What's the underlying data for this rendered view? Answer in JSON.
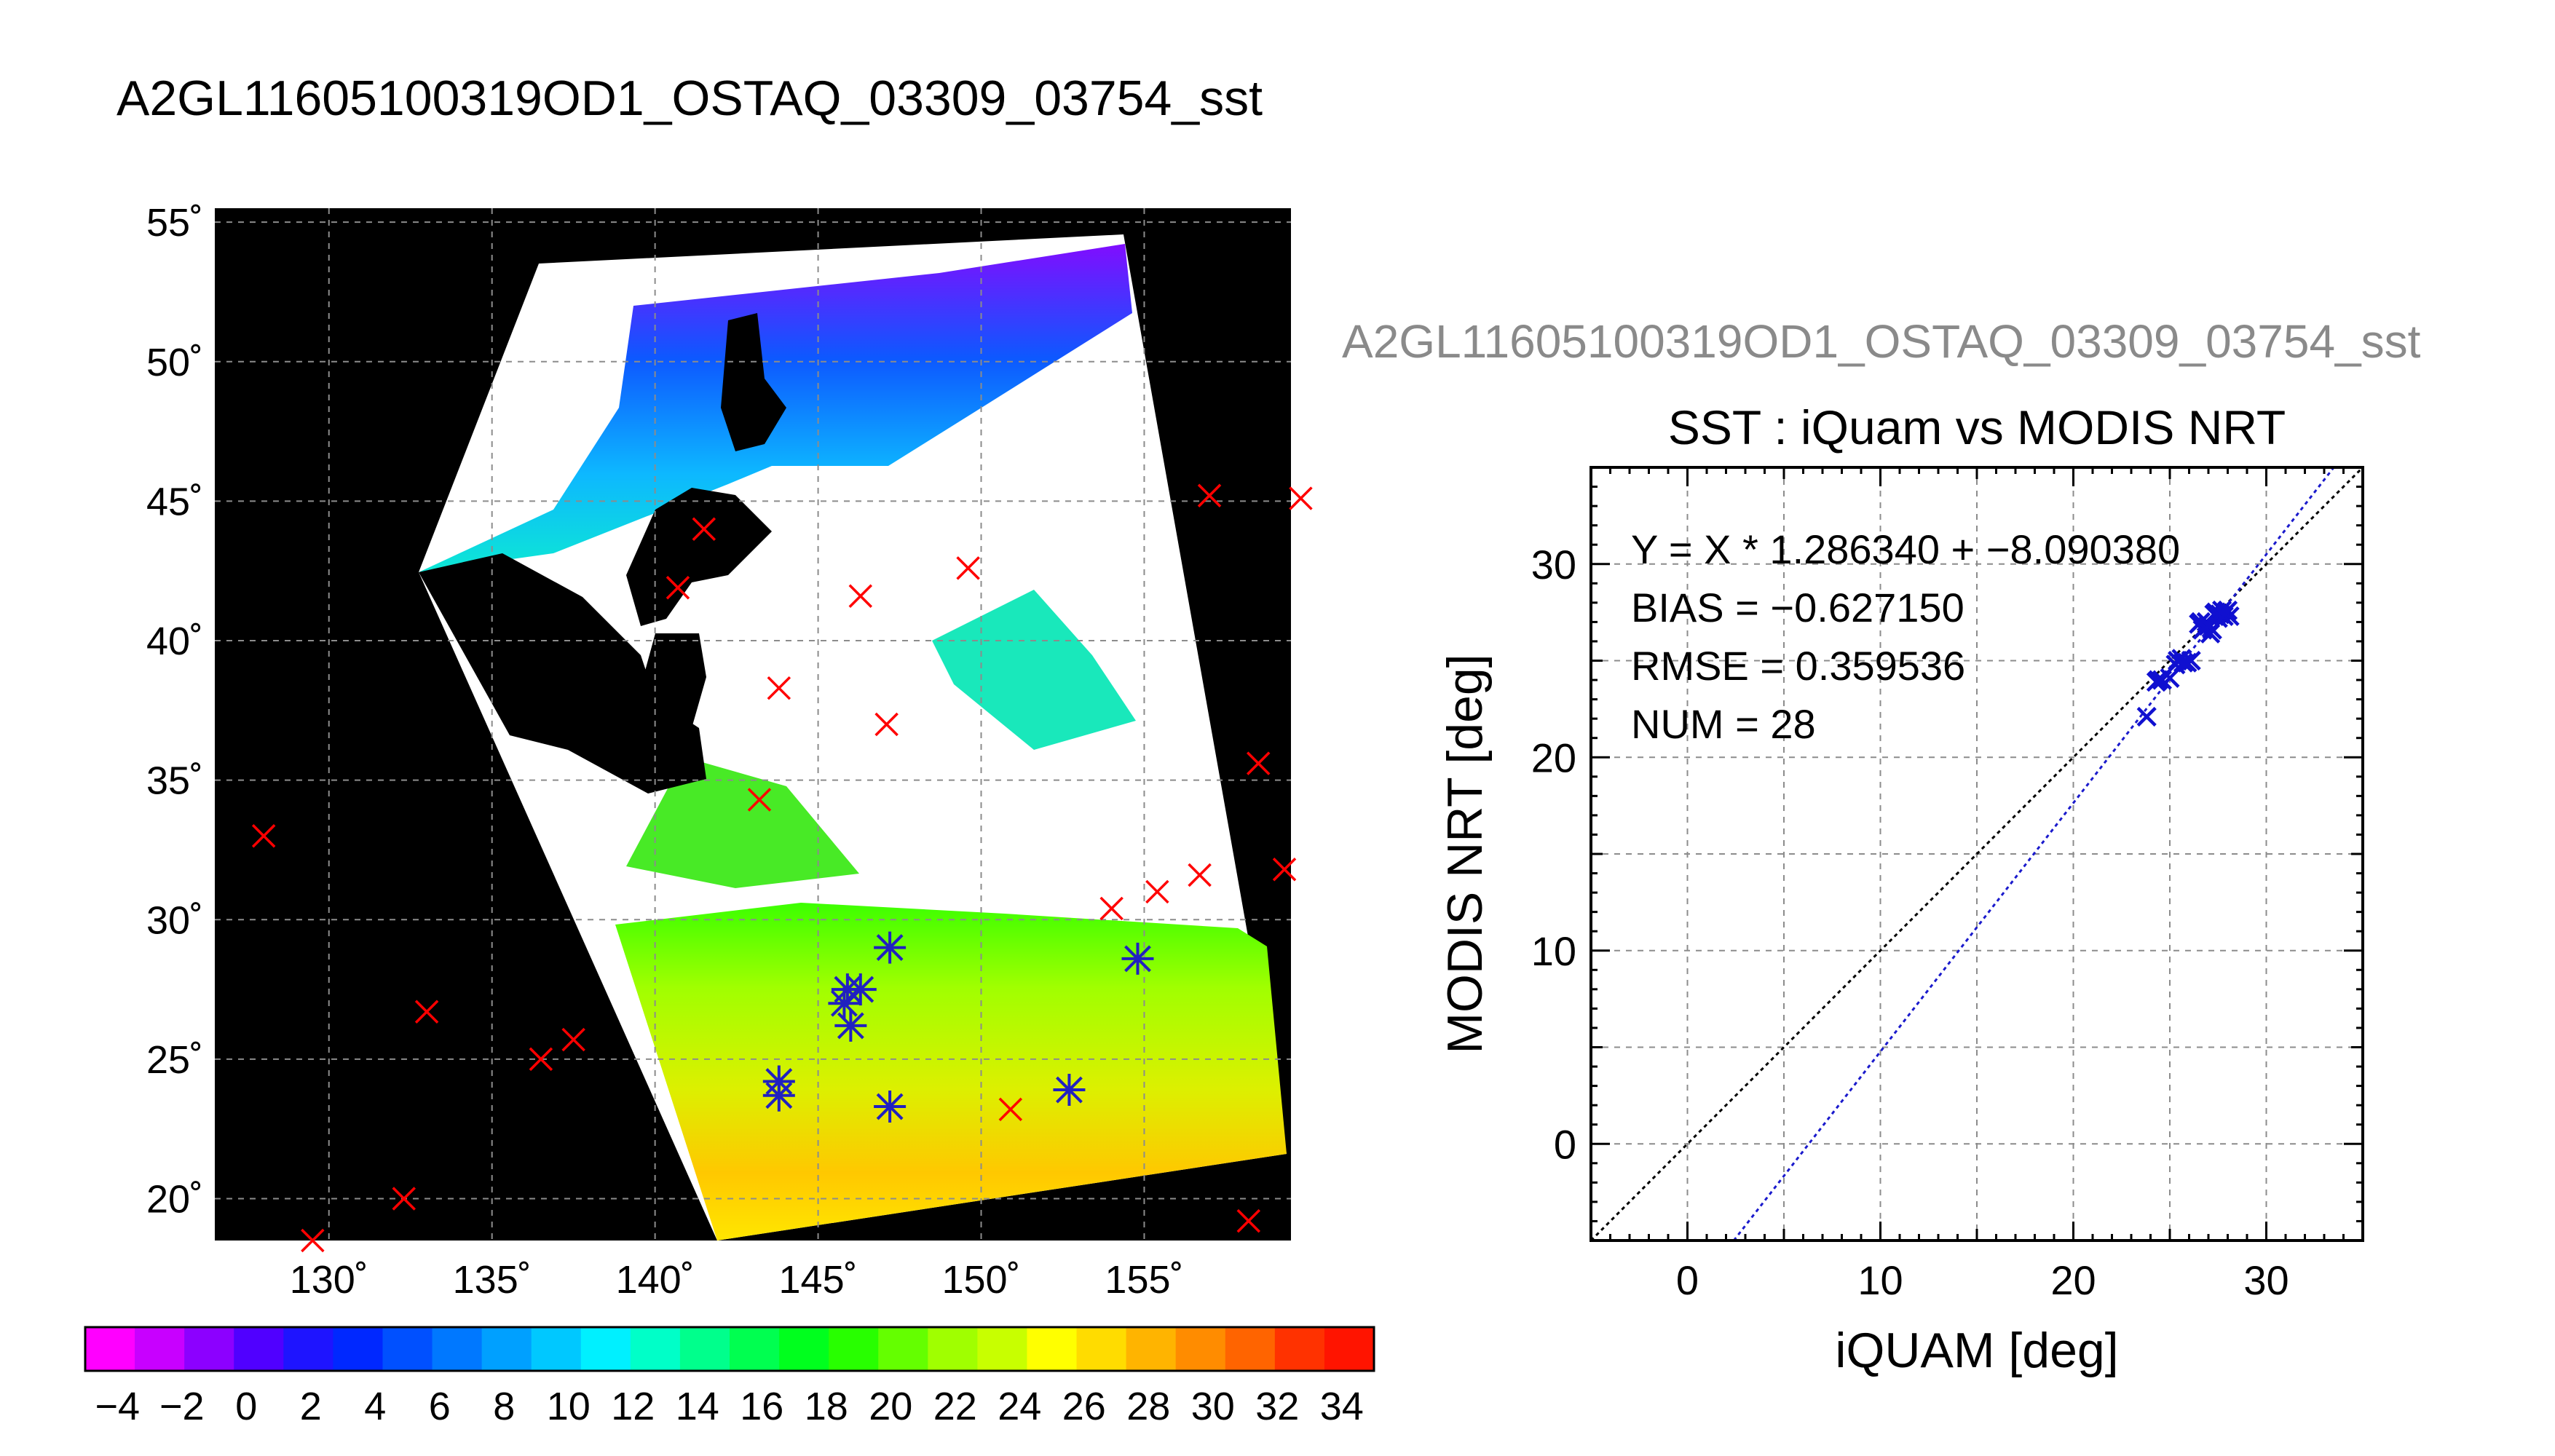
{
  "figure": {
    "title": "A2GL11605100319OD1_OSTAQ_03309_03754_sst",
    "secondary_title": "A2GL11605100319OD1_OSTAQ_03309_03754_sst"
  },
  "chart_data": [
    {
      "type": "map",
      "title": "",
      "lon_range": [
        126.5,
        159.5
      ],
      "lat_range": [
        18.5,
        55.5
      ],
      "lon_ticks": [
        130,
        135,
        140,
        145,
        150,
        155
      ],
      "lat_ticks": [
        20,
        25,
        30,
        35,
        40,
        45,
        50,
        55
      ],
      "lon_tick_labels": [
        "130˚",
        "135˚",
        "140˚",
        "145˚",
        "150˚",
        "155˚"
      ],
      "lat_tick_labels": [
        "20˚",
        "25˚",
        "30˚",
        "35˚",
        "40˚",
        "45˚",
        "50˚",
        "55˚"
      ],
      "grid": true,
      "background": "#000000",
      "swath_fill": "#ffffff",
      "land_fill": "#000000",
      "buoys_all": [
        {
          "lon": 128.0,
          "lat": 33.0
        },
        {
          "lon": 129.5,
          "lat": 18.5
        },
        {
          "lon": 132.3,
          "lat": 20.0
        },
        {
          "lon": 133.0,
          "lat": 26.7
        },
        {
          "lon": 136.5,
          "lat": 25.0
        },
        {
          "lon": 137.5,
          "lat": 25.7
        },
        {
          "lon": 140.7,
          "lat": 41.9
        },
        {
          "lon": 141.5,
          "lat": 44.0
        },
        {
          "lon": 143.2,
          "lat": 34.3
        },
        {
          "lon": 143.8,
          "lat": 38.3
        },
        {
          "lon": 143.8,
          "lat": 23.7
        },
        {
          "lon": 143.8,
          "lat": 24.2
        },
        {
          "lon": 145.9,
          "lat": 27.5
        },
        {
          "lon": 146.0,
          "lat": 26.2
        },
        {
          "lon": 146.3,
          "lat": 27.5
        },
        {
          "lon": 146.3,
          "lat": 41.6
        },
        {
          "lon": 147.1,
          "lat": 37.0
        },
        {
          "lon": 147.2,
          "lat": 29.0
        },
        {
          "lon": 147.2,
          "lat": 23.3
        },
        {
          "lon": 149.6,
          "lat": 42.6
        },
        {
          "lon": 150.9,
          "lat": 23.2
        },
        {
          "lon": 152.7,
          "lat": 23.9
        },
        {
          "lon": 154.0,
          "lat": 30.4
        },
        {
          "lon": 154.8,
          "lat": 28.6
        },
        {
          "lon": 155.4,
          "lat": 31.0
        },
        {
          "lon": 156.7,
          "lat": 31.6
        },
        {
          "lon": 157.0,
          "lat": 45.2
        },
        {
          "lon": 158.5,
          "lat": 35.6
        },
        {
          "lon": 158.2,
          "lat": 19.2
        },
        {
          "lon": 159.3,
          "lat": 31.8
        },
        {
          "lon": 159.8,
          "lat": 45.1
        }
      ],
      "buoys_matched": [
        {
          "lon": 143.8,
          "lat": 23.7
        },
        {
          "lon": 143.8,
          "lat": 24.2
        },
        {
          "lon": 145.9,
          "lat": 27.5
        },
        {
          "lon": 146.0,
          "lat": 26.2
        },
        {
          "lon": 146.3,
          "lat": 27.5
        },
        {
          "lon": 147.2,
          "lat": 29.0
        },
        {
          "lon": 147.2,
          "lat": 23.3
        },
        {
          "lon": 152.7,
          "lat": 23.9
        },
        {
          "lon": 154.8,
          "lat": 28.6
        },
        {
          "lon": 145.8,
          "lat": 27.0
        }
      ],
      "all_marker_color": "#ff0000",
      "matched_marker_color": "#2020c0"
    },
    {
      "type": "colorbar",
      "min": -5,
      "max": 35,
      "step": 2,
      "tick_labels": [
        "−4",
        "−2",
        "0",
        "2",
        "4",
        "6",
        "8",
        "10",
        "12",
        "14",
        "16",
        "18",
        "20",
        "22",
        "24",
        "26",
        "28",
        "30",
        "32",
        "34"
      ],
      "tick_values": [
        -4,
        -2,
        0,
        2,
        4,
        6,
        8,
        10,
        12,
        14,
        16,
        18,
        20,
        22,
        24,
        26,
        28,
        30,
        32,
        34
      ],
      "colors": [
        "#ff00ff",
        "#c800ff",
        "#8c00ff",
        "#5000ff",
        "#1e14ff",
        "#0028ff",
        "#0050ff",
        "#0078ff",
        "#00a0ff",
        "#00c8ff",
        "#00f0ff",
        "#00ffc8",
        "#00ff8c",
        "#00ff50",
        "#00ff1e",
        "#28ff00",
        "#64ff00",
        "#a0ff00",
        "#c8ff00",
        "#ffff00",
        "#ffdc00",
        "#ffb400",
        "#ff8c00",
        "#ff6400",
        "#ff3200",
        "#ff1400"
      ]
    },
    {
      "type": "scatter",
      "title": "SST : iQuam vs MODIS NRT",
      "xlabel": "iQUAM [deg]",
      "ylabel": "MODIS NRT [deg]",
      "xlim": [
        -5,
        35
      ],
      "ylim": [
        -5,
        35
      ],
      "x_ticks": [
        0,
        10,
        20,
        30
      ],
      "y_ticks": [
        0,
        10,
        20,
        30
      ],
      "grid": true,
      "points": [
        {
          "x": 23.8,
          "y": 22.1
        },
        {
          "x": 24.3,
          "y": 23.9
        },
        {
          "x": 24.6,
          "y": 24.0
        },
        {
          "x": 25.0,
          "y": 24.1
        },
        {
          "x": 25.3,
          "y": 24.8
        },
        {
          "x": 25.6,
          "y": 25.1
        },
        {
          "x": 25.9,
          "y": 24.9
        },
        {
          "x": 26.1,
          "y": 25.0
        },
        {
          "x": 26.5,
          "y": 26.9
        },
        {
          "x": 26.7,
          "y": 26.6
        },
        {
          "x": 26.9,
          "y": 27.0
        },
        {
          "x": 27.1,
          "y": 26.4
        },
        {
          "x": 27.3,
          "y": 27.4
        },
        {
          "x": 27.5,
          "y": 27.2
        },
        {
          "x": 27.7,
          "y": 27.6
        },
        {
          "x": 27.9,
          "y": 27.5
        },
        {
          "x": 28.1,
          "y": 27.3
        },
        {
          "x": 27.4,
          "y": 27.5
        },
        {
          "x": 26.8,
          "y": 26.7
        },
        {
          "x": 25.4,
          "y": 25.0
        },
        {
          "x": 24.4,
          "y": 24.0
        },
        {
          "x": 27.6,
          "y": 27.4
        },
        {
          "x": 26.6,
          "y": 27.0
        },
        {
          "x": 27.2,
          "y": 26.6
        },
        {
          "x": 28.0,
          "y": 27.6
        },
        {
          "x": 25.7,
          "y": 24.9
        },
        {
          "x": 27.8,
          "y": 27.3
        },
        {
          "x": 27.0,
          "y": 26.8
        }
      ],
      "regression": {
        "slope": 1.28634,
        "intercept": -8.09038
      },
      "identity_line": true,
      "annotations": [
        "Y = X * 1.286340 + −8.090380",
        "BIAS = −0.627150",
        "RMSE = 0.359536",
        "NUM = 28"
      ],
      "point_color": "#1010d0",
      "regression_color": "#1a1acc",
      "identity_color": "#000000"
    }
  ]
}
